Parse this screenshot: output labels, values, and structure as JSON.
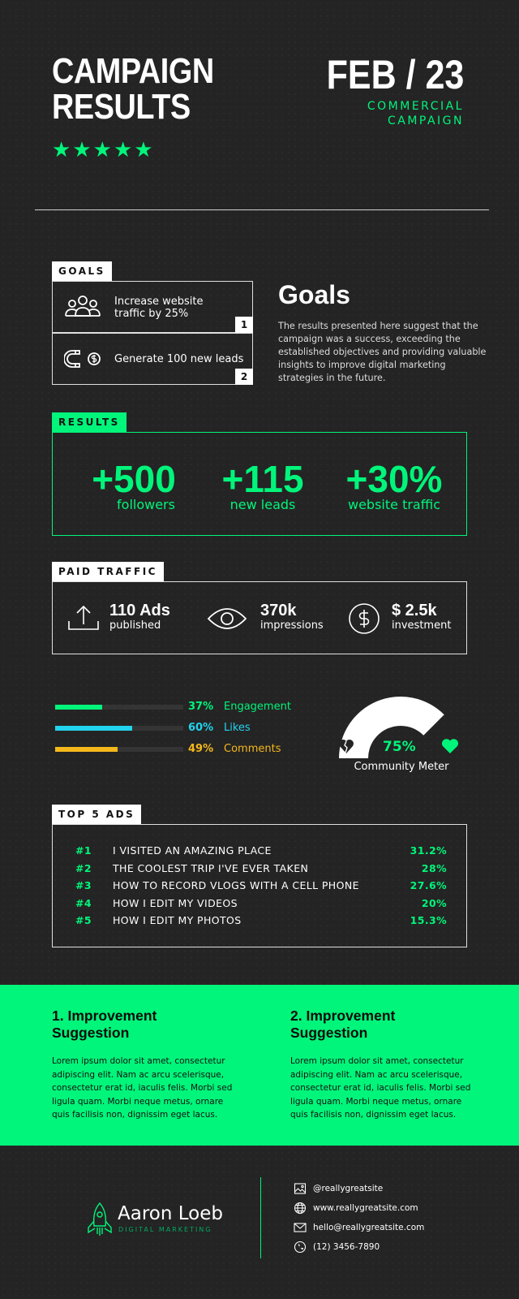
{
  "header": {
    "title_line1": "CAMPAIGN",
    "title_line2": "RESULTS",
    "rating_stars": 5,
    "date": "FEB / 23",
    "subtitle_line1": "COMMERCIAL",
    "subtitle_line2": "CAMPAIGN"
  },
  "goals": {
    "tag": "GOALS",
    "items": [
      {
        "line1": "Increase website",
        "line2": "traffic by 25%",
        "num": "1",
        "icon": "people-icon"
      },
      {
        "line1": "Generate 100 new leads",
        "line2": "",
        "num": "2",
        "icon": "magnet-icon"
      }
    ],
    "heading": "Goals",
    "body": "The results presented here suggest that the campaign was a success, exceeding the established objectives and providing valuable insights to improve digital marketing strategies in the future."
  },
  "results": {
    "tag": "RESULTS",
    "items": [
      {
        "value": "+500",
        "label": "followers"
      },
      {
        "value": "+115",
        "label": "new leads"
      },
      {
        "value": "+30%",
        "label": "website traffic"
      }
    ]
  },
  "paid": {
    "tag": "PAID TRAFFIC",
    "items": [
      {
        "value": "110 Ads",
        "label": "published",
        "icon": "upload-icon"
      },
      {
        "value": "370k",
        "label": "impressions",
        "icon": "eye-icon"
      },
      {
        "value": "$ 2.5k",
        "label": "investment",
        "icon": "dollar-icon"
      }
    ]
  },
  "stats": [
    {
      "pct": "37%",
      "name": "Engagement",
      "value": 0.37,
      "color": "#00f57a"
    },
    {
      "pct": "60%",
      "name": "Likes",
      "value": 0.6,
      "color": "#22d3ee"
    },
    {
      "pct": "49%",
      "name": "Comments",
      "value": 0.49,
      "color": "#f5b81c"
    }
  ],
  "meter": {
    "value": 0.75,
    "pct": "75%",
    "label": "Community Meter"
  },
  "top_ads": {
    "tag": "TOP 5 ADS",
    "items": [
      {
        "rank": "#1",
        "title": "I VISITED AN AMAZING PLACE",
        "pct": "31.2%"
      },
      {
        "rank": "#2",
        "title": "THE COOLEST TRIP I'VE EVER TAKEN",
        "pct": "28%"
      },
      {
        "rank": "#3",
        "title": "HOW TO RECORD VLOGS WITH A CELL PHONE",
        "pct": "27.6%"
      },
      {
        "rank": "#4",
        "title": "HOW I EDIT MY VIDEOS",
        "pct": "20%"
      },
      {
        "rank": "#5",
        "title": "HOW I EDIT MY PHOTOS",
        "pct": "15.3%"
      }
    ]
  },
  "improvements": [
    {
      "title_line1": "1. Improvement",
      "title_line2": "Suggestion",
      "body": "Lorem ipsum dolor sit amet, consectetur adipiscing elit. Nam ac arcu scelerisque, consectetur erat id, iaculis felis. Morbi sed ligula quam. Morbi neque metus, ornare quis facilisis non, dignissim eget lacus."
    },
    {
      "title_line1": "2. Improvement",
      "title_line2": "Suggestion",
      "body": "Lorem ipsum dolor sit amet, consectetur adipiscing elit. Nam ac arcu scelerisque, consectetur erat id, iaculis felis. Morbi sed ligula quam. Morbi neque metus, ornare quis facilisis non, dignissim eget lacus."
    }
  ],
  "footer": {
    "brand": "Aaron Loeb",
    "brand_sub": "DIGITAL MARKETING",
    "contacts": [
      {
        "icon": "image-icon",
        "text": "@reallygreatsite"
      },
      {
        "icon": "globe-icon",
        "text": "www.reallygreatsite.com"
      },
      {
        "icon": "mail-icon",
        "text": "hello@reallygreatsite.com"
      },
      {
        "icon": "phone-icon",
        "text": "(12) 3456-7890"
      }
    ]
  },
  "colors": {
    "background": "#242424",
    "accent": "#00f57a"
  }
}
